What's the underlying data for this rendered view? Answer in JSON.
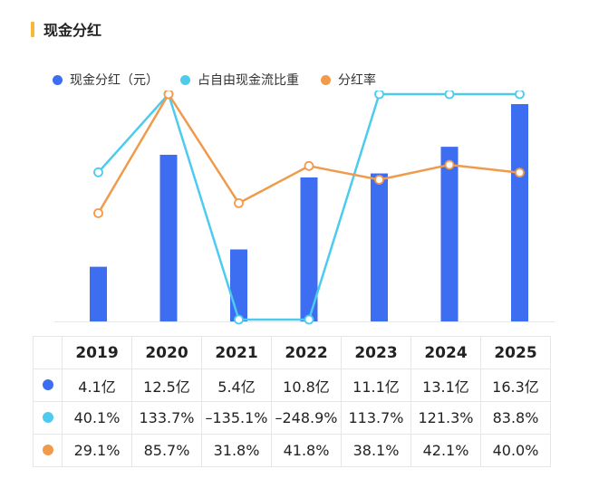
{
  "header": {
    "title": "现金分红"
  },
  "colors": {
    "dividend": "#3d6df0",
    "fcf_ratio": "#4dcbef",
    "payout": "#f09a4b",
    "accent": "#f5b83a"
  },
  "chart_data": {
    "type": "bar",
    "categories": [
      "2019",
      "2020",
      "2021",
      "2022",
      "2023",
      "2024",
      "2025"
    ],
    "series": [
      {
        "name": "现金分红（元）",
        "type": "bar",
        "unit": "亿",
        "values": [
          4.1,
          12.5,
          5.4,
          10.8,
          11.1,
          13.1,
          16.3
        ]
      },
      {
        "name": "占自由现金流比重",
        "type": "line",
        "unit": "%",
        "values": [
          40.1,
          133.7,
          -135.1,
          -248.9,
          113.7,
          121.3,
          83.8
        ]
      },
      {
        "name": "分红率",
        "type": "line",
        "unit": "%",
        "values": [
          29.1,
          85.7,
          31.8,
          41.8,
          38.1,
          42.1,
          40.0
        ]
      }
    ],
    "legend_position": "top-left",
    "grid": false
  },
  "table": {
    "years": [
      "2019",
      "2020",
      "2021",
      "2022",
      "2023",
      "2024",
      "2025"
    ],
    "rows": [
      {
        "color": "#3d6df0",
        "cells": [
          "4.1亿",
          "12.5亿",
          "5.4亿",
          "10.8亿",
          "11.1亿",
          "13.1亿",
          "16.3亿"
        ]
      },
      {
        "color": "#4dcbef",
        "cells": [
          "40.1%",
          "133.7%",
          "–135.1%",
          "–248.9%",
          "113.7%",
          "121.3%",
          "83.8%"
        ]
      },
      {
        "color": "#f09a4b",
        "cells": [
          "29.1%",
          "85.7%",
          "31.8%",
          "41.8%",
          "38.1%",
          "42.1%",
          "40.0%"
        ]
      }
    ]
  }
}
